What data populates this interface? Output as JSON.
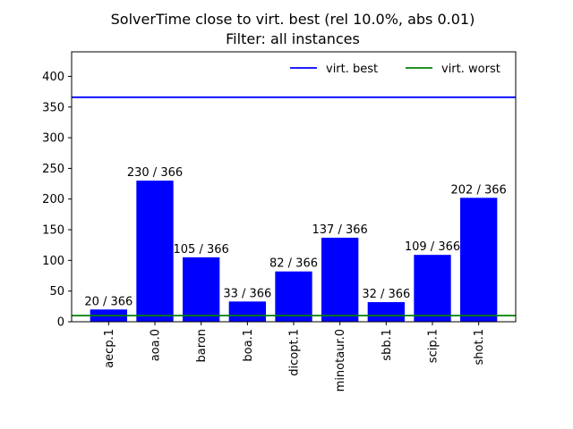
{
  "chart_data": {
    "type": "bar",
    "title": "SolverTime close to virt. best (rel 10.0%, abs 0.01)",
    "subtitle": "Filter: all instances",
    "categories": [
      "aecp.1",
      "aoa.0",
      "baron",
      "boa.1",
      "dicopt.1",
      "minotaur.0",
      "sbb.1",
      "scip.1",
      "shot.1"
    ],
    "values": [
      20,
      230,
      105,
      33,
      82,
      137,
      32,
      109,
      202
    ],
    "data_labels": [
      "20 / 366",
      "230 / 366",
      "105 / 366",
      "33 / 366",
      "82 / 366",
      "137 / 366",
      "32 / 366",
      "109 / 366",
      "202 / 366"
    ],
    "bar_color": "#0000ff",
    "ylim": [
      0,
      440
    ],
    "yticks": [
      0,
      50,
      100,
      150,
      200,
      250,
      300,
      350,
      400
    ],
    "reference_lines": [
      {
        "name": "virt. best",
        "value": 366,
        "color": "#0000ff"
      },
      {
        "name": "virt. worst",
        "value": 10,
        "color": "#008000"
      }
    ],
    "legend_position": "top-right",
    "grid": false,
    "xlabel": "",
    "ylabel": ""
  }
}
